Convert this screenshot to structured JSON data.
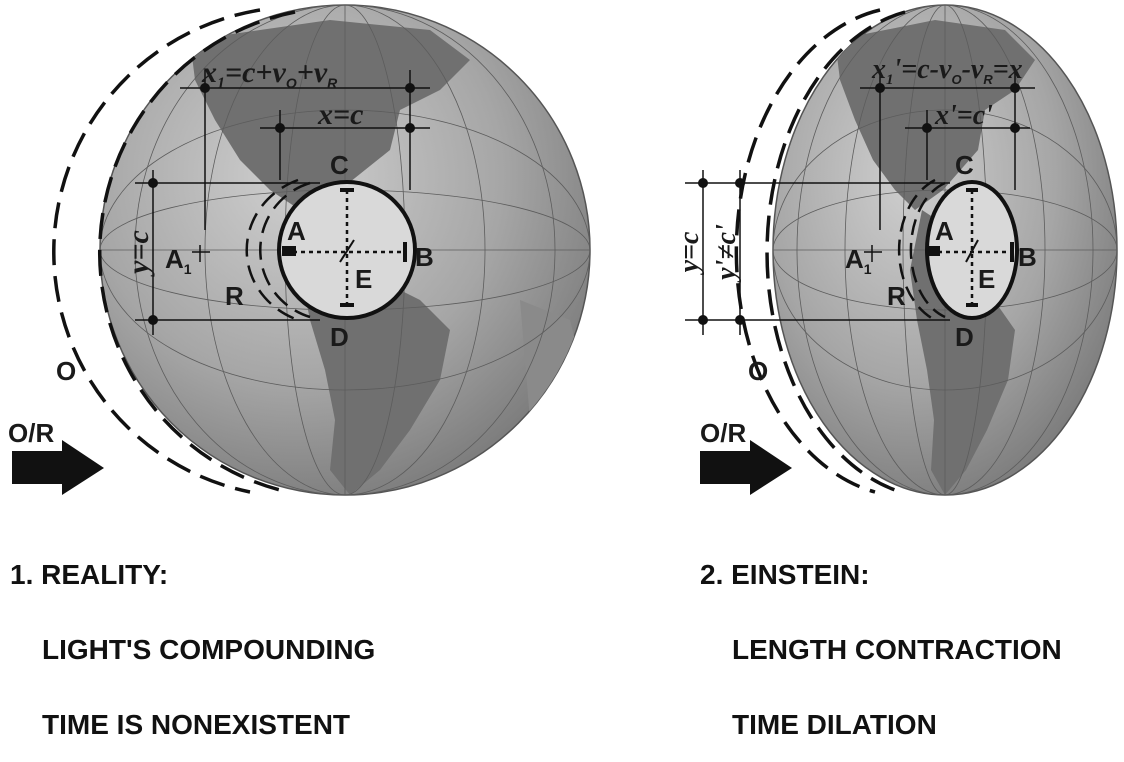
{
  "panel1": {
    "caption": [
      "1. REALITY:",
      "LIGHT'S COMPOUNDING",
      "TIME IS NONEXISTENT"
    ],
    "formula_x1": {
      "base": "x",
      "sub1": "1",
      "eq": "=c+",
      "v": "v",
      "sub_o": "O",
      "plus": "+",
      "v2": "v",
      "sub_r": "R"
    },
    "formula_x": "x=c",
    "formula_y": "y=c",
    "points": {
      "a": "A",
      "a1_base": "A",
      "a1_sub": "1",
      "b": "B",
      "c": "C",
      "d": "D",
      "e": "E",
      "r": "R",
      "o": "O"
    },
    "arrow_label": "O/R"
  },
  "panel2": {
    "caption": [
      "2. EINSTEIN:",
      "LENGTH CONTRACTION",
      "TIME DILATION"
    ],
    "formula_x1": {
      "base": "x",
      "sub1": "1",
      "prime": "'=c-",
      "v": "v",
      "sub_o": "O",
      "minus": "-",
      "v2": "v",
      "sub_r": "R",
      "eq": "=x"
    },
    "formula_x": "x'=c'",
    "formula_y": "y=c",
    "formula_yprime": "y'≠c'",
    "points": {
      "a": "A",
      "a1_base": "A",
      "a1_sub": "1",
      "b": "B",
      "c": "C",
      "d": "D",
      "e": "E",
      "r": "R",
      "o": "O"
    },
    "arrow_label": "O/R"
  },
  "colors": {
    "ocean": "#a8a8a8",
    "land": "#6e6e6e",
    "ink": "#1a1a1a"
  }
}
